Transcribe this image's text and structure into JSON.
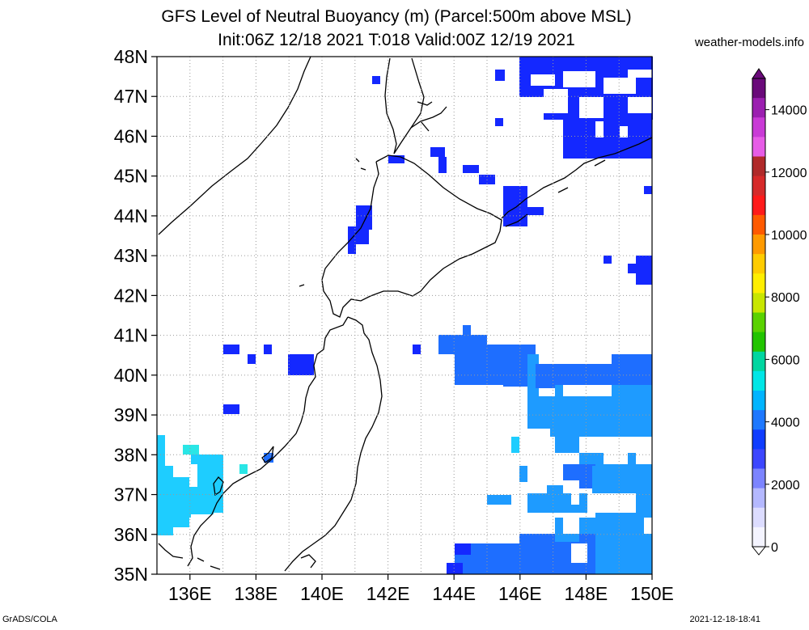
{
  "title": {
    "line1": "GFS Level of Neutral Buoyancy (m) (Parcel:500m above MSL)",
    "line2": "Init:06Z 12/18 2021 T:018 Valid:00Z 12/19 2021"
  },
  "site_label": "weather-models.info",
  "footer": {
    "left": "GrADS/COLA",
    "right": "2021-12-18-18:41"
  },
  "map": {
    "lat_labels": [
      "48N",
      "47N",
      "46N",
      "45N",
      "44N",
      "43N",
      "42N",
      "41N",
      "40N",
      "39N",
      "38N",
      "37N",
      "36N",
      "35N"
    ],
    "lon_labels": [
      "136E",
      "138E",
      "140E",
      "142E",
      "144E",
      "146E",
      "148E",
      "150E"
    ],
    "lat_range": [
      35,
      48
    ],
    "lon_range": [
      135,
      150
    ],
    "gridlines": true
  },
  "colorbar": {
    "labels": [
      "14000",
      "12000",
      "10000",
      "8000",
      "6000",
      "4000",
      "2000",
      "0"
    ],
    "colors": [
      "#6a0a7a",
      "#9b1fb0",
      "#c93ad6",
      "#e65ce6",
      "#b02a2a",
      "#d62a2a",
      "#ff1a1a",
      "#ff5a00",
      "#ff9a00",
      "#ffcc00",
      "#ffee00",
      "#c8e600",
      "#5ad200",
      "#22c400",
      "#00d6a0",
      "#00e6e6",
      "#00b4ff",
      "#1e78ff",
      "#0f3cff",
      "#3c46ff",
      "#7c84ff",
      "#b4b8ff",
      "#dcdcff",
      "#f4f4ff"
    ],
    "range": [
      0,
      15000
    ]
  },
  "colors": {
    "blue_dark": "#1428ff",
    "blue_mid": "#1e6eff",
    "blue_light": "#1e9bff",
    "cyan": "#1ecdff",
    "aqua": "#2ae6e6"
  }
}
